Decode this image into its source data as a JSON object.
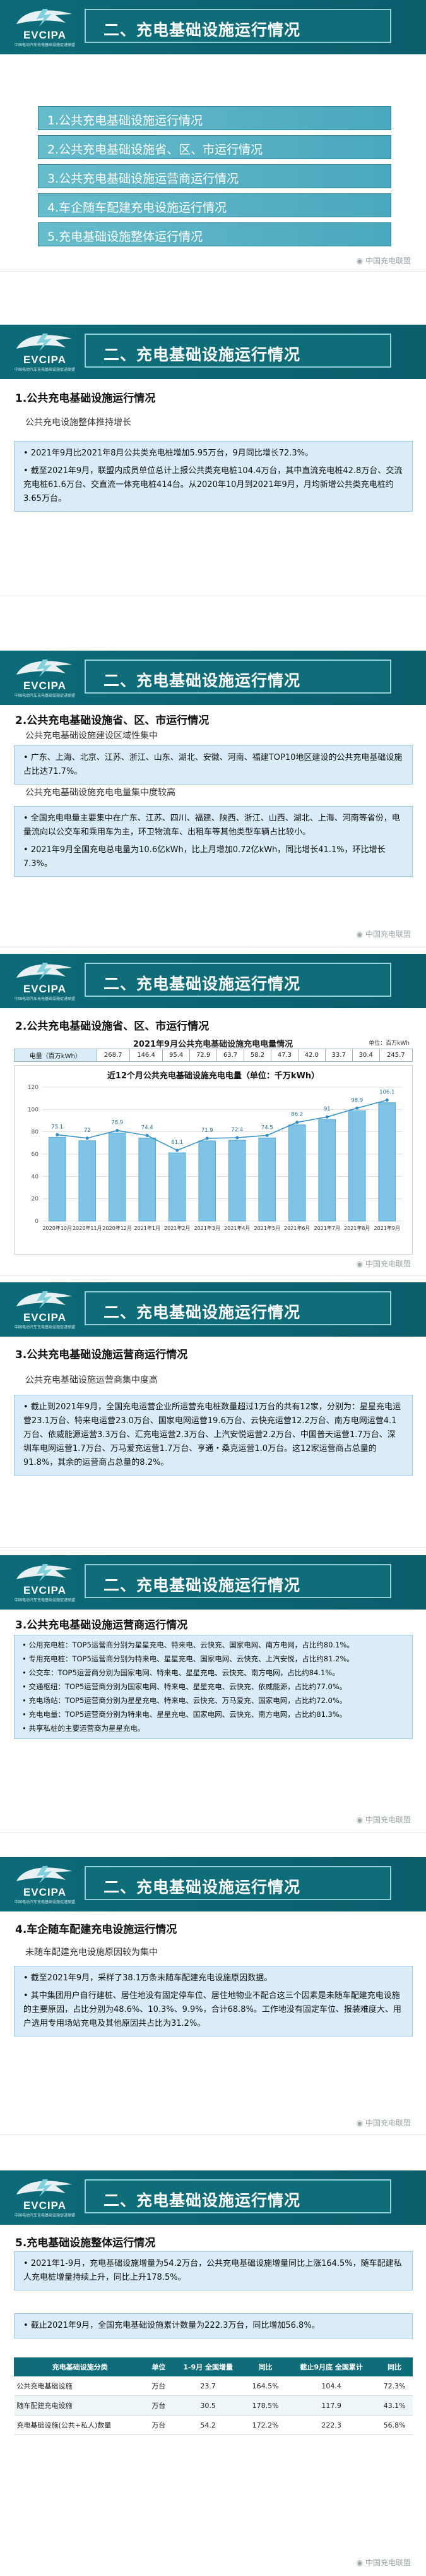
{
  "header": {
    "logo_text": "EVCIPA",
    "logo_sub": "中国电动汽车充电基础设施促进联盟",
    "section_title": "二、充电基础设施运行情况"
  },
  "watermark": "中国充电联盟",
  "agenda": [
    "1.公共充电基础设施运行情况",
    "2.公共充电基础设施省、区、市运行情况",
    "3.公共充电基础设施运营商运行情况",
    "4.车企随车配建充电设施运行情况",
    "5.充电基础设施整体运行情况"
  ],
  "s1": {
    "title": "1.公共充电基础设施运行情况",
    "subtitle": "公共充电设施整体推持增长",
    "p1": "• 2021年9月比2021年8月公共类充电桩增加5.95万台，9月同比增长72.3%。",
    "p2": "• 截至2021年9月，联盟内成员单位总计上报公共类充电桩104.4万台，其中直流充电桩42.8万台、交流充电桩61.6万台、交直流一体充电桩414台。从2020年10月到2021年9月，月均新增公共类充电桩约3.65万台。"
  },
  "s2": {
    "title": "2.公共充电基础设施省、区、市运行情况",
    "subtitle": "公共充电基础设施建设区域性集中",
    "p1": "• 广东、上海、北京、江苏、浙江、山东、湖北、安徽、河南、福建TOP10地区建设的公共充电基础设施占比达71.7%。",
    "subtitle2": "公共充电基础设施充电电量集中度较高",
    "p2": "• 全国充电电量主要集中在广东、江苏、四川、福建、陕西、浙江、山西、湖北、上海、河南等省份，电量流向以公交车和乘用车为主，环卫物流车、出租车等其他类型车辆占比较小。",
    "p3": "• 2021年9月全国充电总电量为10.6亿kWh，比上月增加0.72亿kWh，同比增长41.1%，环比增长7.3%。"
  },
  "s2b": {
    "title": "2.公共充电基础设施省、区、市运行情况",
    "table_title": "2021年9月公共充电基础设施充电电量情况",
    "table_unit": "单位：百万kWh",
    "row_label": "电量（百万kWh）",
    "row_values": [
      "268.7",
      "146.4",
      "95.4",
      "72.9",
      "63.7",
      "58.2",
      "47.3",
      "42.0",
      "33.7",
      "30.4",
      "245.7"
    ],
    "chart_data": {
      "type": "bar",
      "title": "近12个月公共充电基础设施充电电量（单位：千万kWh）",
      "categories": [
        "2020年10月",
        "2020年11月",
        "2020年12月",
        "2021年1月",
        "2021年2月",
        "2021年3月",
        "2021年4月",
        "2021年5月",
        "2021年6月",
        "2021年7月",
        "2021年8月",
        "2021年9月"
      ],
      "values": [
        75.1,
        72.0,
        78.9,
        74.4,
        61.1,
        71.9,
        72.4,
        74.5,
        86.2,
        91.0,
        98.9,
        106.1
      ],
      "ylim": [
        0,
        120
      ],
      "grid": true
    }
  },
  "s3": {
    "title": "3.公共充电基础设施运营商运行情况",
    "subtitle": "公共充电基础设施运营商集中度高",
    "p1": "• 截止到2021年9月，全国充电运营企业所运营充电桩数量超过1万台的共有12家，分别为：星星充电运营23.1万台、特来电运营23.0万台、国家电网运营19.6万台、云快充运营12.2万台、南方电网运营4.1万台、依威能源运营3.3万台、汇充电运营2.3万台、上汽安悦运营2.2万台、中国普天运营1.7万台、深圳车电网运营1.7万台、万马爱充运营1.7万台、亨通・桑克运营1.0万台。这12家运营商占总量的91.8%，其余的运营商占总量的8.2%。"
  },
  "s3b": {
    "title": "3.公共充电基础设施运营商运行情况",
    "items": [
      "• 公用充电桩：TOP5运营商分别为星星充电、特来电、云快充、国家电网、南方电网，占比约80.1%。",
      "• 专用充电桩：TOP5运营商分别为特来电、星星充电、国家电网、云快充、上汽安悦，占比约81.2%。",
      "• 公交车：TOP5运营商分别为国家电网、特来电、星星充电、云快充、南方电网，占比约84.1%。",
      "• 交通枢纽：TOP5运营商分别为国家电网、特来电、星星充电、云快充、依威能源，占比约77.0%。",
      "• 充电场站：TOP5运营商分别为星星充电、特来电、云快充、万马爱充、国家电网，占比约72.0%。",
      "• 充电电量：TOP5运营商分别为特来电、星星充电、国家电网、云快充、南方电网，占比约81.3%。",
      "• 共享私桩的主要运营商为星星充电。"
    ]
  },
  "s4": {
    "title": "4.车企随车配建充电设施运行情况",
    "subtitle": "未随车配建充电设施原因较为集中",
    "p1": "• 截至2021年9月，采样了38.1万条未随车配建充电设施原因数据。",
    "p2": "• 其中集团用户自行建桩、居住地没有固定停车位、居住地物业不配合这三个因素是未随车配建充电设施的主要原因，占比分别为48.6%、10.3%、9.9%，合计68.8%。工作地没有固定车位、报装难度大、用户选用专用场站充电及其他原因共占比为31.2%。"
  },
  "s5": {
    "title": "5.充电基础设施整体运行情况",
    "p1": "• 2021年1-9月，充电基础设施增量为54.2万台，公共充电基础设施增量同比上涨164.5%，随车配建私人充电桩增量持续上升，同比上升178.5%。",
    "p2": "• 截止2021年9月，全国充电基础设施累计数量为222.3万台，同比增加56.8%。",
    "table_headers": [
      "充电基础设施分类",
      "单位",
      "1-9月 全国增量",
      "同比",
      "截止9月底 全国累计",
      "同比"
    ],
    "table_rows": [
      [
        "公共充电基础设施",
        "万台",
        "23.7",
        "164.5%",
        "104.4",
        "72.3%"
      ],
      [
        "随车配建充电设施",
        "万台",
        "30.5",
        "178.5%",
        "117.9",
        "43.1%"
      ],
      [
        "充电基础设施(公共+私人)数量",
        "万台",
        "54.2",
        "172.2%",
        "222.3",
        "56.8%"
      ]
    ]
  }
}
